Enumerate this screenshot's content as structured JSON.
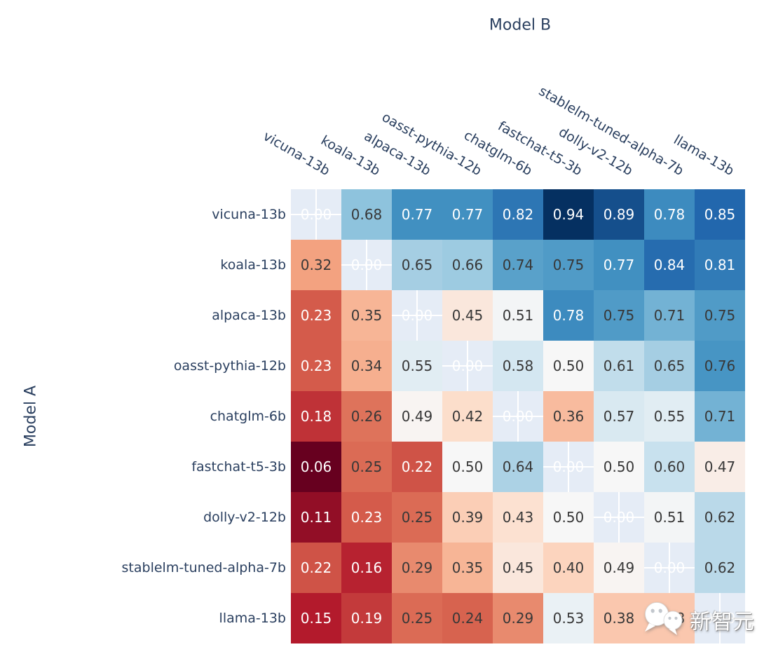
{
  "figure": {
    "x_axis_title": "Model B",
    "y_axis_title": "Model A"
  },
  "chart_data": {
    "type": "heatmap",
    "title": "",
    "xlabel": "Model B",
    "ylabel": "Model A",
    "x_categories": [
      "vicuna-13b",
      "koala-13b",
      "alpaca-13b",
      "oasst-pythia-12b",
      "chatglm-6b",
      "fastchat-t5-3b",
      "dolly-v2-12b",
      "stablelm-tuned-alpha-7b",
      "llama-13b"
    ],
    "y_categories": [
      "vicuna-13b",
      "koala-13b",
      "alpaca-13b",
      "oasst-pythia-12b",
      "chatglm-6b",
      "fastchat-t5-3b",
      "dolly-v2-12b",
      "stablelm-tuned-alpha-7b",
      "llama-13b"
    ],
    "rows": [
      [
        null,
        0.68,
        0.77,
        0.77,
        0.82,
        0.94,
        0.89,
        0.78,
        0.85
      ],
      [
        0.32,
        null,
        0.65,
        0.66,
        0.74,
        0.75,
        0.77,
        0.84,
        0.81
      ],
      [
        0.23,
        0.35,
        null,
        0.45,
        0.51,
        0.78,
        0.75,
        0.71,
        0.75
      ],
      [
        0.23,
        0.34,
        0.55,
        null,
        0.58,
        0.5,
        0.61,
        0.65,
        0.76
      ],
      [
        0.18,
        0.26,
        0.49,
        0.42,
        null,
        0.36,
        0.57,
        0.55,
        0.71
      ],
      [
        0.06,
        0.25,
        0.22,
        0.5,
        0.64,
        null,
        0.5,
        0.6,
        0.47
      ],
      [
        0.11,
        0.23,
        0.25,
        0.39,
        0.43,
        0.5,
        null,
        0.51,
        0.62
      ],
      [
        0.22,
        0.16,
        0.29,
        0.35,
        0.45,
        0.4,
        0.49,
        null,
        0.62
      ],
      [
        0.15,
        0.19,
        0.25,
        0.24,
        0.29,
        0.53,
        0.38,
        0.38,
        null
      ]
    ],
    "diagonal_text": "0.00",
    "zmin": 0.06,
    "zmax": 0.94,
    "colorscale_name": "RdBu",
    "colorscale": [
      [
        0.0,
        "#67001f"
      ],
      [
        0.1,
        "#b2182b"
      ],
      [
        0.2,
        "#d6604d"
      ],
      [
        0.3,
        "#f4a582"
      ],
      [
        0.4,
        "#fddbc7"
      ],
      [
        0.5,
        "#f7f7f7"
      ],
      [
        0.6,
        "#d1e5f0"
      ],
      [
        0.7,
        "#92c5de"
      ],
      [
        0.8,
        "#4393c3"
      ],
      [
        0.9,
        "#2166ac"
      ],
      [
        1.0,
        "#053061"
      ]
    ],
    "legend_position": "none",
    "grid_on": true
  },
  "colors": {
    "plot_background": "#E5ECF6",
    "page_background": "#ffffff",
    "axis_label": "#2a3f5f",
    "cell_text_dark": "#383838",
    "cell_text_light": "#ffffff",
    "gridline": "#ffffff"
  },
  "watermark": {
    "text": "新智元",
    "icon": "wechat-logo"
  }
}
